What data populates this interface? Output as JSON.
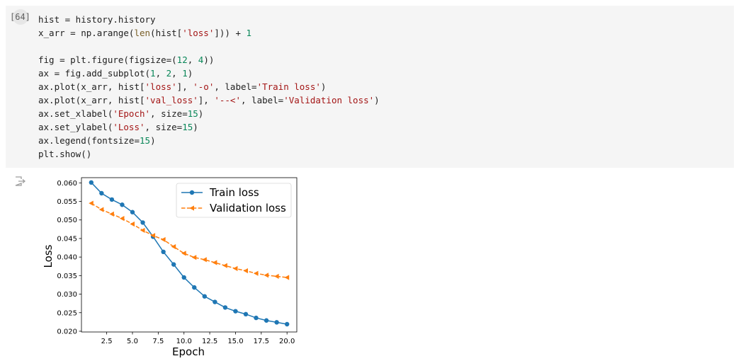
{
  "cell": {
    "prompt": "[64]",
    "code_lines": [
      [
        {
          "t": "hist = history.history"
        }
      ],
      [
        {
          "t": "x_arr = np.arange("
        },
        {
          "t": "len",
          "c": "f"
        },
        {
          "t": "(hist["
        },
        {
          "t": "'loss'",
          "c": "s"
        },
        {
          "t": "])) + "
        },
        {
          "t": "1",
          "c": "n"
        }
      ],
      [
        {
          "t": ""
        }
      ],
      [
        {
          "t": "fig = plt.figure(figsize=("
        },
        {
          "t": "12",
          "c": "n"
        },
        {
          "t": ", "
        },
        {
          "t": "4",
          "c": "n"
        },
        {
          "t": "))"
        }
      ],
      [
        {
          "t": "ax = fig.add_subplot("
        },
        {
          "t": "1",
          "c": "n"
        },
        {
          "t": ", "
        },
        {
          "t": "2",
          "c": "n"
        },
        {
          "t": ", "
        },
        {
          "t": "1",
          "c": "n"
        },
        {
          "t": ")"
        }
      ],
      [
        {
          "t": "ax.plot(x_arr, hist["
        },
        {
          "t": "'loss'",
          "c": "s"
        },
        {
          "t": "], "
        },
        {
          "t": "'-o'",
          "c": "s"
        },
        {
          "t": ", label="
        },
        {
          "t": "'Train loss'",
          "c": "s"
        },
        {
          "t": ")"
        }
      ],
      [
        {
          "t": "ax.plot(x_arr, hist["
        },
        {
          "t": "'val_loss'",
          "c": "s"
        },
        {
          "t": "], "
        },
        {
          "t": "'--<'",
          "c": "s"
        },
        {
          "t": ", label="
        },
        {
          "t": "'Validation loss'",
          "c": "s"
        },
        {
          "t": ")"
        }
      ],
      [
        {
          "t": "ax.set_xlabel("
        },
        {
          "t": "'Epoch'",
          "c": "s"
        },
        {
          "t": ", size="
        },
        {
          "t": "15",
          "c": "n"
        },
        {
          "t": ")"
        }
      ],
      [
        {
          "t": "ax.set_ylabel("
        },
        {
          "t": "'Loss'",
          "c": "s"
        },
        {
          "t": ", size="
        },
        {
          "t": "15",
          "c": "n"
        },
        {
          "t": ")"
        }
      ],
      [
        {
          "t": "ax.legend(fontsize="
        },
        {
          "t": "15",
          "c": "n"
        },
        {
          "t": ")"
        }
      ],
      [
        {
          "t": "plt.show()"
        }
      ]
    ]
  },
  "output_icon": "output-arrow-icon",
  "chart_data": {
    "type": "line",
    "title": "",
    "xlabel": "Epoch",
    "ylabel": "Loss",
    "x": [
      1,
      2,
      3,
      4,
      5,
      6,
      7,
      8,
      9,
      10,
      11,
      12,
      13,
      14,
      15,
      16,
      17,
      18,
      19,
      20
    ],
    "xlim": [
      0.05,
      20.95
    ],
    "ylim": [
      0.0198,
      0.0614
    ],
    "x_ticks": [
      2.5,
      5.0,
      7.5,
      10.0,
      12.5,
      15.0,
      17.5,
      20.0
    ],
    "x_tick_labels": [
      "2.5",
      "5.0",
      "7.5",
      "10.0",
      "12.5",
      "15.0",
      "17.5",
      "20.0"
    ],
    "y_ticks": [
      0.02,
      0.025,
      0.03,
      0.035,
      0.04,
      0.045,
      0.05,
      0.055,
      0.06
    ],
    "y_tick_labels": [
      "0.020",
      "0.025",
      "0.030",
      "0.035",
      "0.040",
      "0.045",
      "0.050",
      "0.055",
      "0.060"
    ],
    "grid": false,
    "legend_position": "top-right",
    "series": [
      {
        "name": "Train loss",
        "color": "#1f77b4",
        "style": "solid",
        "marker": "circle",
        "values": [
          0.0601,
          0.0572,
          0.0555,
          0.0541,
          0.0521,
          0.0493,
          0.0455,
          0.0414,
          0.038,
          0.0345,
          0.0318,
          0.0294,
          0.0279,
          0.0264,
          0.0254,
          0.0246,
          0.0236,
          0.0229,
          0.0224,
          0.0219
        ]
      },
      {
        "name": "Validation loss",
        "color": "#ff7f0e",
        "style": "dashed",
        "marker": "triangle-left",
        "values": [
          0.0545,
          0.0528,
          0.0516,
          0.0504,
          0.0489,
          0.0472,
          0.0458,
          0.0447,
          0.0428,
          0.041,
          0.0399,
          0.0393,
          0.0385,
          0.0377,
          0.0369,
          0.0363,
          0.0356,
          0.0351,
          0.0348,
          0.0345
        ]
      }
    ]
  }
}
